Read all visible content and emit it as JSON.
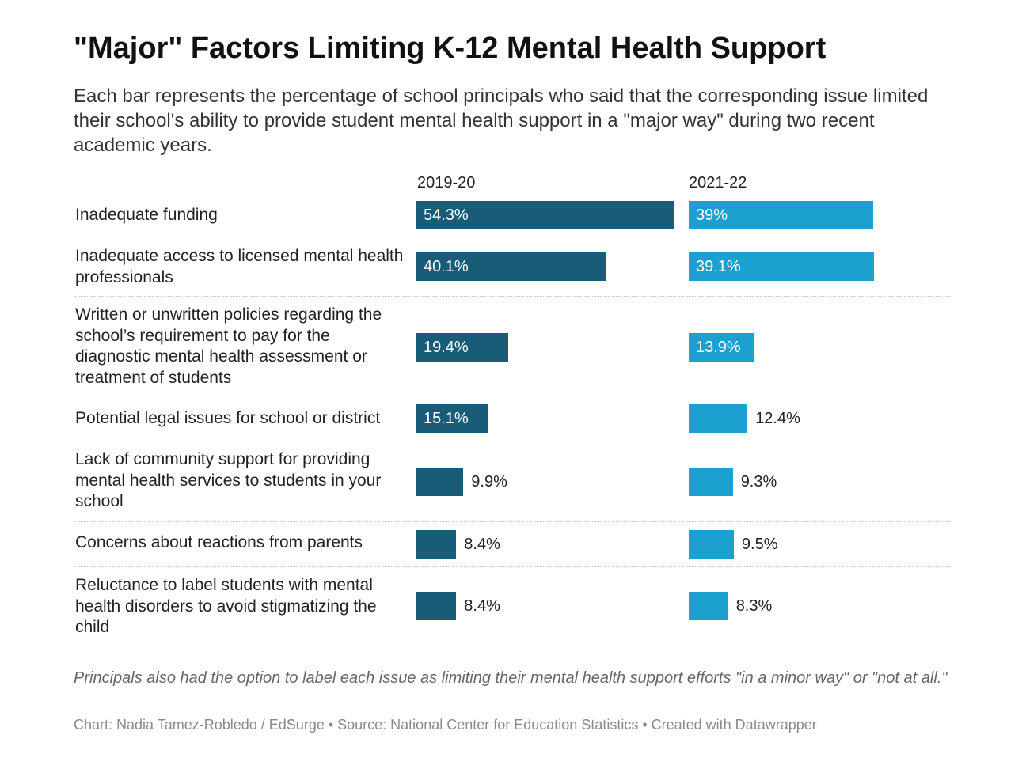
{
  "title": "\"Major\" Factors Limiting K-12 Mental Health Support",
  "subtitle": "Each bar represents the percentage of school principals who said that the corresponding issue limited their school's ability to provide student mental health support in a \"major way\" during two recent academic years.",
  "note": "Principals also had the option to label each issue as limiting their mental health support efforts \"in a minor way\" or \"not at all.\"",
  "credit": "Chart: Nadia Tamez-Robledo / EdSurge • Source: National Center for Education Statistics • Created with Datawrapper",
  "colors": {
    "series_2019": "#185c78",
    "series_2021": "#1ca0d0"
  },
  "chart_data": {
    "type": "bar",
    "orientation": "horizontal",
    "categories": [
      "Inadequate funding",
      "Inadequate access to licensed mental health professionals",
      "Written or unwritten policies regarding the school’s requirement to pay for the diagnostic mental health assessment or treatment of students",
      "Potential legal issues for school or district",
      "Lack of community support for providing mental health services to students in your school",
      "Concerns about reactions from parents",
      "Reluctance to label students with mental health disorders to avoid stigmatizing the child"
    ],
    "series": [
      {
        "name": "2019-20",
        "values": [
          54.3,
          40.1,
          19.4,
          15.1,
          9.9,
          8.4,
          8.4
        ],
        "labels": [
          "54.3%",
          "40.1%",
          "19.4%",
          "15.1%",
          "9.9%",
          "8.4%",
          "8.4%"
        ]
      },
      {
        "name": "2021-22",
        "values": [
          39,
          39.1,
          13.9,
          12.4,
          9.3,
          9.5,
          8.3
        ],
        "labels": [
          "39%",
          "39.1%",
          "13.9%",
          "12.4%",
          "9.3%",
          "9.5%",
          "8.3%"
        ]
      }
    ],
    "unit": "%",
    "grid": false
  }
}
